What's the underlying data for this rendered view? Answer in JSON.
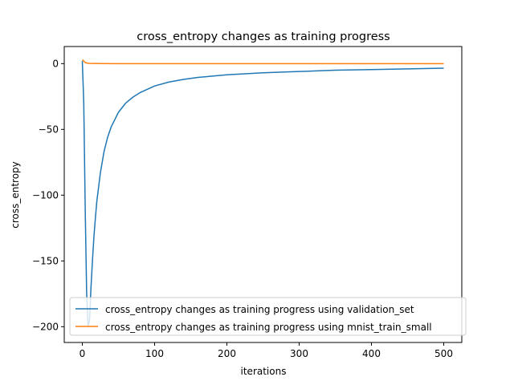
{
  "chart_data": {
    "type": "line",
    "title": "cross_entropy changes as training progress",
    "xlabel": "iterations",
    "ylabel": "cross_entropy",
    "xlim": [
      -25,
      525
    ],
    "ylim": [
      -212,
      13
    ],
    "xticks": [
      0,
      100,
      200,
      300,
      400,
      500
    ],
    "xtick_labels": [
      "0",
      "100",
      "200",
      "300",
      "400",
      "500"
    ],
    "yticks": [
      0,
      -50,
      -100,
      -150,
      -200
    ],
    "ytick_labels": [
      "0",
      "−50",
      "−100",
      "−150",
      "−200"
    ],
    "grid": false,
    "legend_position": "lower right",
    "series": [
      {
        "name": "cross_entropy changes as training progress using validation_set",
        "color": "#1f77b4",
        "x": [
          0,
          2,
          4,
          6,
          8,
          10,
          12,
          14,
          16,
          18,
          20,
          25,
          30,
          35,
          40,
          50,
          60,
          70,
          80,
          90,
          100,
          120,
          140,
          160,
          180,
          200,
          250,
          300,
          350,
          400,
          450,
          500
        ],
        "y": [
          2,
          -30,
          -110,
          -175,
          -200,
          -195,
          -170,
          -150,
          -132,
          -118,
          -105,
          -83,
          -67,
          -56,
          -48,
          -37,
          -30,
          -25.5,
          -22,
          -19.5,
          -17,
          -14,
          -12,
          -10.5,
          -9.5,
          -8.5,
          -7,
          -6,
          -5,
          -4.5,
          -4,
          -3.5
        ]
      },
      {
        "name": "cross_entropy changes as training progress using mnist_train_small",
        "color": "#ff7f0e",
        "x": [
          0,
          2,
          4,
          6,
          8,
          10,
          15,
          20,
          50,
          100,
          200,
          300,
          400,
          500
        ],
        "y": [
          3,
          2,
          0.8,
          0.5,
          0.3,
          0.2,
          0.1,
          0.1,
          0,
          0,
          0,
          0,
          0,
          0
        ]
      }
    ]
  }
}
